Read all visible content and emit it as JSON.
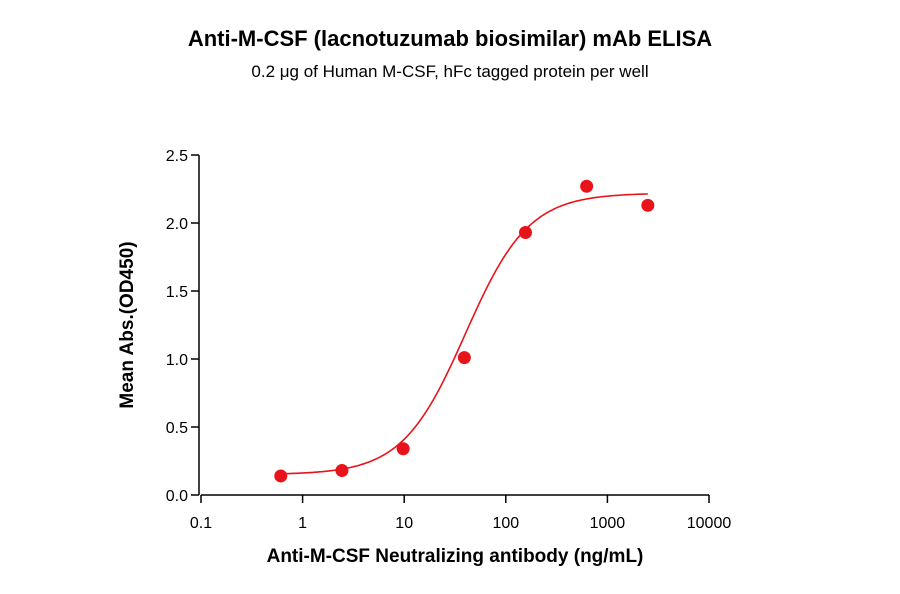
{
  "chart_data": {
    "type": "scatter",
    "title": "Anti-M-CSF (lacnotuzumab biosimilar) mAb ELISA",
    "subtitle": "0.2 μg of Human M-CSF, hFc tagged protein per well",
    "xlabel": "Anti-M-CSF Neutralizing antibody (ng/mL)",
    "ylabel": "Mean Abs.(OD450)",
    "xscale": "log",
    "xlim": [
      0.1,
      10000
    ],
    "ylim": [
      0,
      2.5
    ],
    "xticks": [
      0.1,
      1,
      10,
      100,
      1000,
      10000
    ],
    "xtick_labels": [
      "0.1",
      "1",
      "10",
      "100",
      "1000",
      "10000"
    ],
    "yticks": [
      0,
      0.5,
      1,
      1.5,
      2,
      2.5
    ],
    "ytick_labels": [
      "0.0",
      "0.5",
      "1.0",
      "1.5",
      "2.0",
      "2.5"
    ],
    "grid": false,
    "legend": "none",
    "color": "#e8141b",
    "series": [
      {
        "x": [
          0.61,
          2.44,
          9.77,
          39.1,
          156.3,
          625,
          2500
        ],
        "y": [
          0.14,
          0.18,
          0.34,
          1.01,
          1.93,
          2.27,
          2.13
        ],
        "fit": "4PL",
        "fit_params": {
          "bottom": 0.15,
          "top": 2.22,
          "ec50": 40,
          "hill": 1.4
        }
      }
    ]
  }
}
